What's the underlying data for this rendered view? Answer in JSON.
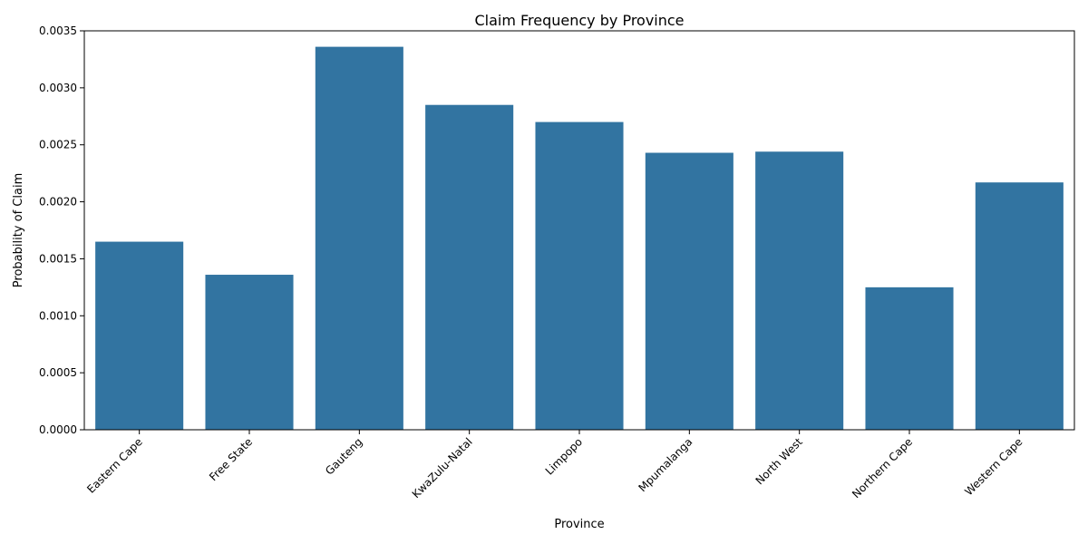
{
  "chart_data": {
    "type": "bar",
    "title": "Claim Frequency by Province",
    "xlabel": "Province",
    "ylabel": "Probability of Claim",
    "categories": [
      "Eastern Cape",
      "Free State",
      "Gauteng",
      "KwaZulu-Natal",
      "Limpopo",
      "Mpumalanga",
      "North West",
      "Northern Cape",
      "Western Cape"
    ],
    "values": [
      0.00165,
      0.00136,
      0.00336,
      0.00285,
      0.0027,
      0.00243,
      0.00244,
      0.00125,
      0.00217
    ],
    "ylim": [
      0,
      0.0035
    ],
    "yticks": [
      "0.0000",
      "0.0005",
      "0.0010",
      "0.0015",
      "0.0020",
      "0.0025",
      "0.0030",
      "0.0035"
    ],
    "grid": false,
    "legend": "none",
    "bar_color": "#3274a1"
  }
}
